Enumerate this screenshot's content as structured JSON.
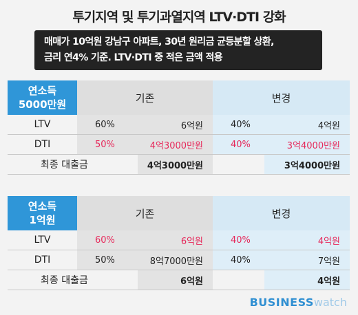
{
  "title": "투기지역 및 투기과열지역 LTV·DTI 강화",
  "note": {
    "line1": "매매가 10억원 강남구 아파트, 30년 원리금 균등분할 상환,",
    "line2": "금리 연4% 기준. LTV·DTI 중 적은 금액 적용"
  },
  "tables": [
    {
      "corner_line1": "연소득",
      "corner_line2": "5000만원",
      "col_before": "기존",
      "col_after": "변경",
      "rows": [
        {
          "label": "LTV",
          "before_pct": "60%",
          "before_amt": "6억원",
          "after_pct": "40%",
          "after_amt": "4억원"
        },
        {
          "label": "DTI",
          "before_pct": "50%",
          "before_amt": "4억3000만원",
          "after_pct": "40%",
          "after_amt": "3억4000만원"
        }
      ],
      "final": {
        "label": "최종 대출금",
        "before_amt": "4억3000만원",
        "after_amt": "3억4000만원"
      }
    },
    {
      "corner_line1": "연소득",
      "corner_line2": "1억원",
      "col_before": "기존",
      "col_after": "변경",
      "rows": [
        {
          "label": "LTV",
          "before_pct": "60%",
          "before_amt": "6억원",
          "after_pct": "40%",
          "after_amt": "4억원"
        },
        {
          "label": "DTI",
          "before_pct": "50%",
          "before_amt": "8억7000만원",
          "after_pct": "40%",
          "after_amt": "7억원"
        }
      ],
      "final": {
        "label": "최종 대출금",
        "before_amt": "6억원",
        "after_amt": "4억원"
      }
    }
  ],
  "logo": {
    "business": "BUSINESS",
    "watch": "watch"
  },
  "colors": {
    "accent_blue": "#2f96d8",
    "highlight_red": "#e6285a",
    "note_bg": "#232323"
  }
}
